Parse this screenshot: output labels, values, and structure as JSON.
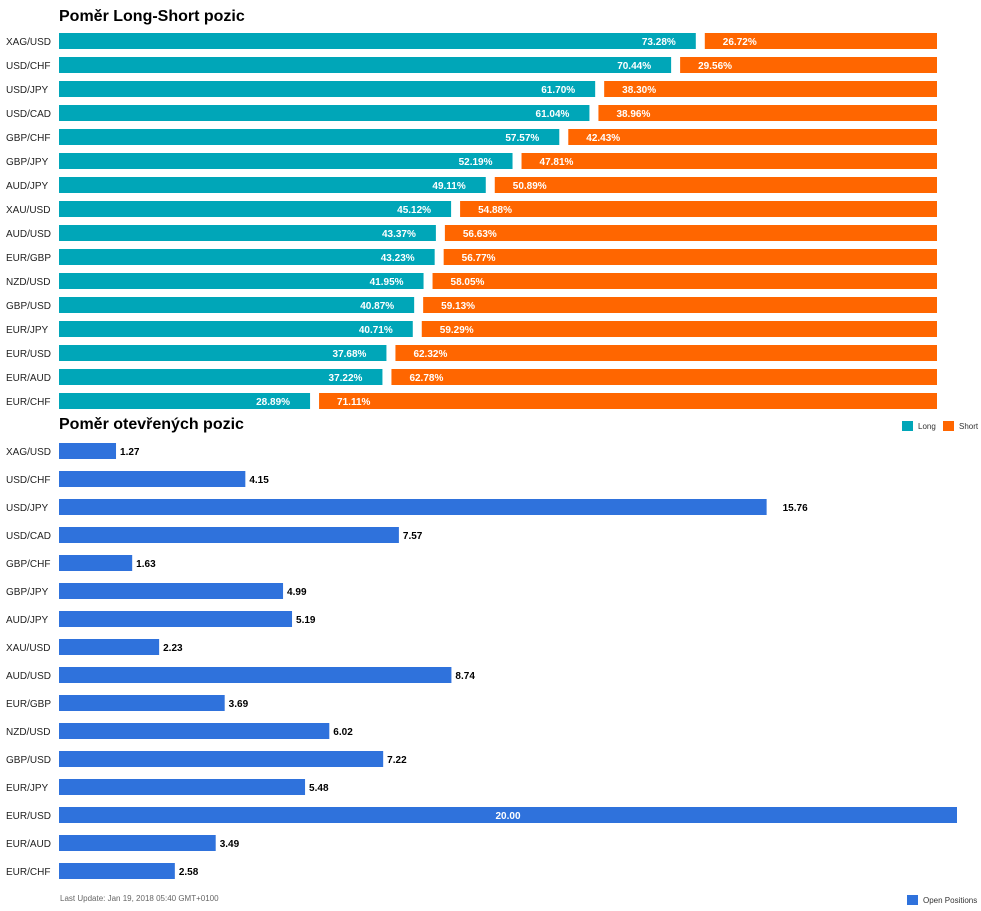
{
  "colors": {
    "long": "#00a6b8",
    "short": "#ff6600",
    "open": "#2f72dc"
  },
  "labels": {
    "title1": "Poměr Long-Short pozic",
    "title2": "Poměr otevřených pozic",
    "legend_long": "Long",
    "legend_short": "Short",
    "legend_open": "Open Positions",
    "footer": "Last Update: Jan 19, 2018 05:40 GMT+0100"
  },
  "chart_data": [
    {
      "type": "bar",
      "title": "Poměr Long-Short pozic",
      "categories": [
        "XAG/USD",
        "USD/CHF",
        "USD/JPY",
        "USD/CAD",
        "GBP/CHF",
        "GBP/JPY",
        "AUD/JPY",
        "XAU/USD",
        "AUD/USD",
        "EUR/GBP",
        "NZD/USD",
        "GBP/USD",
        "EUR/JPY",
        "EUR/USD",
        "EUR/AUD",
        "EUR/CHF"
      ],
      "series": [
        {
          "name": "Long",
          "values": [
            73.28,
            70.44,
            61.7,
            61.04,
            57.57,
            52.19,
            49.11,
            45.12,
            43.37,
            43.23,
            41.95,
            40.87,
            40.71,
            37.68,
            37.22,
            28.89
          ],
          "labels": [
            "73.28%",
            "70.44%",
            "61.70%",
            "61.04%",
            "57.57%",
            "52.19%",
            "49.11%",
            "45.12%",
            "43.37%",
            "43.23%",
            "41.95%",
            "40.87%",
            "40.71%",
            "37.68%",
            "37.22%",
            "28.89%"
          ]
        },
        {
          "name": "Short",
          "values": [
            26.72,
            29.56,
            38.3,
            38.96,
            42.43,
            47.81,
            50.89,
            54.88,
            56.63,
            56.77,
            58.05,
            59.13,
            59.29,
            62.32,
            62.78,
            71.11
          ],
          "labels": [
            "26.72%",
            "29.56%",
            "38.30%",
            "38.96%",
            "42.43%",
            "47.81%",
            "50.89%",
            "54.88%",
            "56.63%",
            "56.77%",
            "58.05%",
            "59.13%",
            "59.29%",
            "62.32%",
            "62.78%",
            "71.11%"
          ]
        }
      ],
      "stacked": true,
      "orientation": "horizontal",
      "legend": "bottom-right"
    },
    {
      "type": "bar",
      "title": "Poměr otevřených pozic",
      "categories": [
        "XAG/USD",
        "USD/CHF",
        "USD/JPY",
        "USD/CAD",
        "GBP/CHF",
        "GBP/JPY",
        "AUD/JPY",
        "XAU/USD",
        "AUD/USD",
        "EUR/GBP",
        "NZD/USD",
        "GBP/USD",
        "EUR/JPY",
        "EUR/USD",
        "EUR/AUD",
        "EUR/CHF"
      ],
      "series": [
        {
          "name": "Open Positions",
          "values": [
            1.27,
            4.15,
            15.76,
            7.57,
            1.63,
            4.99,
            5.19,
            2.23,
            8.74,
            3.69,
            6.02,
            7.22,
            5.48,
            20.0,
            3.49,
            2.58
          ],
          "labels": [
            "1.27",
            "4.15",
            "15.76",
            "7.57",
            "1.63",
            "4.99",
            "5.19",
            "2.23",
            "8.74",
            "3.69",
            "6.02",
            "7.22",
            "5.48",
            "20.00",
            "3.49",
            "2.58"
          ]
        }
      ],
      "orientation": "horizontal",
      "xlim": [
        0,
        20
      ],
      "legend": "bottom-right"
    }
  ]
}
